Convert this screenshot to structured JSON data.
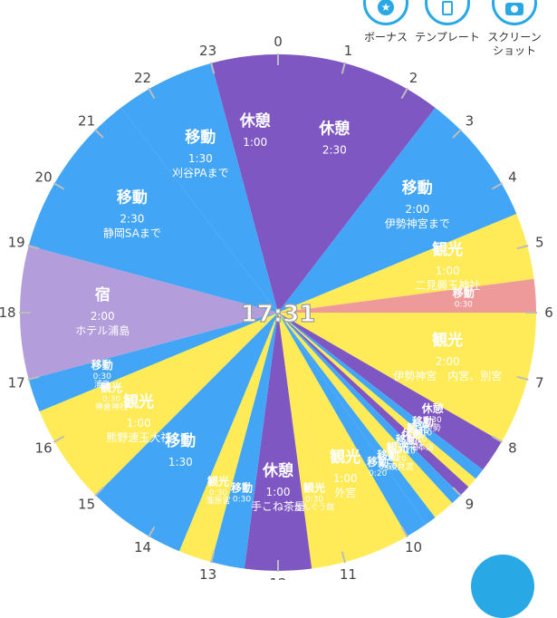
{
  "toolbar": {
    "bonus_label": "ボーナス",
    "template_label": "テンプレート",
    "screenshot_label": "スクリーン\nショット",
    "accent": "#29a8e6",
    "bonus_icon": "star-icon",
    "template_icon": "bookmark-icon",
    "screenshot_icon": "camera-icon"
  },
  "clock": {
    "current_time": "17:31",
    "hours": [
      "0",
      "1",
      "2",
      "3",
      "4",
      "5",
      "6",
      "7",
      "8",
      "9",
      "10",
      "11",
      "12",
      "13",
      "14",
      "15",
      "16",
      "17",
      "18",
      "19",
      "20",
      "21",
      "22",
      "23"
    ]
  },
  "colors": {
    "move": "#42a5f5",
    "rest": "#7e57c2",
    "sightseeing": "#ffeb57",
    "stay": "#b39ddb",
    "special": "#ef9a9a"
  },
  "segments": [
    {
      "start": 23.0,
      "end": 24.0,
      "kind": "rest",
      "title": "休憩",
      "duration": "1:00",
      "place": ""
    },
    {
      "start": 0.0,
      "end": 2.5,
      "kind": "rest",
      "title": "休憩",
      "duration": "2:30",
      "place": ""
    },
    {
      "start": 2.5,
      "end": 4.5,
      "kind": "move",
      "title": "移動",
      "duration": "2:00",
      "place": "伊勢神宮まで"
    },
    {
      "start": 4.5,
      "end": 5.5,
      "kind": "sightseeing",
      "title": "観光",
      "duration": "1:00",
      "place": "二見興玉神社"
    },
    {
      "start": 5.5,
      "end": 6.0,
      "kind": "special",
      "title": "移動",
      "duration": "0:30",
      "place": ""
    },
    {
      "start": 6.0,
      "end": 8.0,
      "kind": "sightseeing",
      "title": "観光",
      "duration": "2:00",
      "place": "伊勢神宮　内宮、別宮"
    },
    {
      "start": 8.0,
      "end": 8.5,
      "kind": "rest",
      "title": "休憩",
      "duration": "0:30",
      "place": "伊勢"
    },
    {
      "start": 8.5,
      "end": 8.67,
      "kind": "move",
      "title": "移動",
      "duration": "0:10",
      "place": ""
    },
    {
      "start": 8.67,
      "end": 8.83,
      "kind": "sightseeing",
      "title": "観光",
      "duration": "0:10",
      "place": "赤福本店"
    },
    {
      "start": 8.83,
      "end": 9.0,
      "kind": "rest",
      "title": "休憩",
      "duration": "0:10",
      "place": ""
    },
    {
      "start": 9.0,
      "end": 9.17,
      "kind": "move",
      "title": "移動",
      "duration": "0:10",
      "place": ""
    },
    {
      "start": 9.17,
      "end": 9.5,
      "kind": "sightseeing",
      "title": "観光",
      "duration": "0:20",
      "place": "月夜見宮"
    },
    {
      "start": 9.5,
      "end": 9.67,
      "kind": "move",
      "title": "移動",
      "duration": "0:10",
      "place": ""
    },
    {
      "start": 9.67,
      "end": 10.0,
      "kind": "move",
      "title": "移動",
      "duration": "0:20",
      "place": ""
    },
    {
      "start": 10.0,
      "end": 11.0,
      "kind": "sightseeing",
      "title": "観光",
      "duration": "1:00",
      "place": "外宮"
    },
    {
      "start": 11.0,
      "end": 11.5,
      "kind": "sightseeing",
      "title": "観光",
      "duration": "0:30",
      "place": "せんぐう館"
    },
    {
      "start": 11.5,
      "end": 12.5,
      "kind": "rest",
      "title": "休憩",
      "duration": "1:00",
      "place": "手こね茶屋"
    },
    {
      "start": 12.5,
      "end": 13.0,
      "kind": "move",
      "title": "移動",
      "duration": "0:30",
      "place": ""
    },
    {
      "start": 13.0,
      "end": 13.5,
      "kind": "sightseeing",
      "title": "観光",
      "duration": "0:30",
      "place": "瀧原宮"
    },
    {
      "start": 13.5,
      "end": 15.0,
      "kind": "move",
      "title": "移動",
      "duration": "1:30",
      "place": ""
    },
    {
      "start": 15.0,
      "end": 16.0,
      "kind": "sightseeing",
      "title": "観光",
      "duration": "1:00",
      "place": "熊野速玉大社"
    },
    {
      "start": 16.0,
      "end": 16.5,
      "kind": "sightseeing",
      "title": "観光",
      "duration": "0:30",
      "place": "神倉神社"
    },
    {
      "start": 16.5,
      "end": 17.0,
      "kind": "move",
      "title": "移動",
      "duration": "0:30",
      "place": "浦島"
    },
    {
      "start": 17.0,
      "end": 19.0,
      "kind": "stay",
      "title": "宿",
      "duration": "2:00",
      "place": "ホテル浦島"
    },
    {
      "start": 19.0,
      "end": 21.5,
      "kind": "move",
      "title": "移動",
      "duration": "2:30",
      "place": "静岡SAまで"
    },
    {
      "start": 21.5,
      "end": 23.0,
      "kind": "move",
      "title": "移動",
      "duration": "1:30",
      "place": "刈谷PAまで"
    }
  ]
}
